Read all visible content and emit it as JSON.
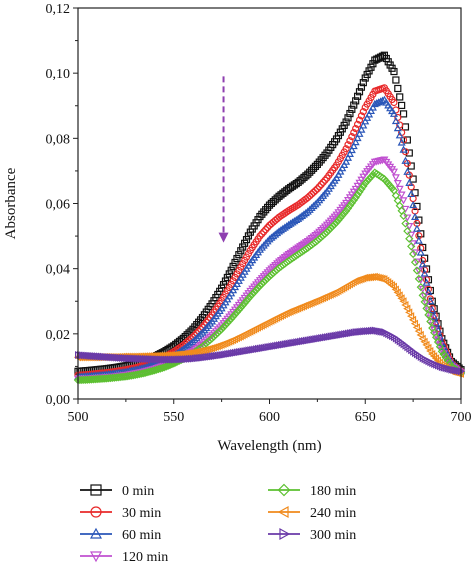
{
  "chart_data": {
    "type": "scatter",
    "title": "",
    "xlabel": "Wavelength (nm)",
    "ylabel": "Absorbance",
    "xlim": [
      500,
      700
    ],
    "ylim": [
      0.0,
      0.12
    ],
    "x_ticks": [
      "500",
      "550",
      "600",
      "650",
      "700"
    ],
    "y_ticks": [
      "0,00",
      "0,02",
      "0,04",
      "0,06",
      "0,08",
      "0,10",
      "0,12"
    ],
    "grid": false,
    "legend_position": "bottom",
    "annotation": "dashed arrow pointing down from ~0.099 to ~0.048 at 576 nm",
    "arrow": {
      "x": 576,
      "y_start": 0.099,
      "y_end": 0.048,
      "color": "#8e3fb0"
    },
    "x": [
      500,
      505,
      510,
      515,
      520,
      525,
      530,
      535,
      540,
      545,
      550,
      555,
      560,
      565,
      570,
      575,
      580,
      585,
      590,
      595,
      600,
      605,
      610,
      615,
      620,
      625,
      630,
      635,
      640,
      645,
      650,
      655,
      660,
      665,
      670,
      675,
      680,
      685,
      690,
      695,
      700
    ],
    "series": [
      {
        "name": "0 min",
        "color": "#111111",
        "marker": "square",
        "values": [
          0.0085,
          0.0087,
          0.009,
          0.0093,
          0.0097,
          0.0102,
          0.0109,
          0.0118,
          0.013,
          0.0145,
          0.0163,
          0.0186,
          0.0214,
          0.025,
          0.0292,
          0.034,
          0.0395,
          0.0455,
          0.0512,
          0.056,
          0.0595,
          0.0622,
          0.0645,
          0.0665,
          0.069,
          0.072,
          0.0755,
          0.0798,
          0.085,
          0.0915,
          0.0985,
          0.104,
          0.1055,
          0.1005,
          0.0875,
          0.0675,
          0.0465,
          0.03,
          0.0185,
          0.0115,
          0.009
        ]
      },
      {
        "name": "30 min",
        "color": "#e8292a",
        "marker": "circle",
        "values": [
          0.0073,
          0.0075,
          0.0078,
          0.0081,
          0.0085,
          0.009,
          0.0096,
          0.0104,
          0.0115,
          0.0128,
          0.0145,
          0.0165,
          0.019,
          0.022,
          0.0258,
          0.0302,
          0.0352,
          0.0405,
          0.0456,
          0.05,
          0.0533,
          0.0558,
          0.0578,
          0.0596,
          0.0618,
          0.0645,
          0.0678,
          0.0718,
          0.0768,
          0.083,
          0.0895,
          0.0945,
          0.0955,
          0.091,
          0.0795,
          0.0615,
          0.0425,
          0.0278,
          0.0175,
          0.011,
          0.0085
        ]
      },
      {
        "name": "60 min",
        "color": "#2a56b8",
        "marker": "triangle-up",
        "values": [
          0.0068,
          0.007,
          0.0072,
          0.0075,
          0.0079,
          0.0083,
          0.0089,
          0.0096,
          0.0106,
          0.0118,
          0.0133,
          0.0152,
          0.0175,
          0.0204,
          0.0238,
          0.0278,
          0.0324,
          0.0372,
          0.0418,
          0.0458,
          0.049,
          0.0514,
          0.0534,
          0.0553,
          0.0575,
          0.0603,
          0.0637,
          0.0678,
          0.0728,
          0.0788,
          0.0852,
          0.0905,
          0.0918,
          0.0875,
          0.0765,
          0.0595,
          0.0413,
          0.0272,
          0.0172,
          0.011,
          0.0085
        ]
      },
      {
        "name": "120 min",
        "color": "#c050d0",
        "marker": "triangle-down",
        "values": [
          0.0062,
          0.0063,
          0.0065,
          0.0067,
          0.007,
          0.0074,
          0.0079,
          0.0085,
          0.0093,
          0.0103,
          0.0115,
          0.013,
          0.0148,
          0.017,
          0.0196,
          0.0226,
          0.026,
          0.0296,
          0.0332,
          0.0365,
          0.0395,
          0.0422,
          0.0445,
          0.0465,
          0.0485,
          0.0508,
          0.0535,
          0.0566,
          0.0602,
          0.0645,
          0.0692,
          0.0728,
          0.0735,
          0.0698,
          0.061,
          0.0478,
          0.0338,
          0.0228,
          0.015,
          0.0102,
          0.0082
        ]
      },
      {
        "name": "180 min",
        "color": "#5cc030",
        "marker": "diamond",
        "values": [
          0.0058,
          0.0059,
          0.0061,
          0.0063,
          0.0066,
          0.0069,
          0.0074,
          0.008,
          0.0088,
          0.0097,
          0.0109,
          0.0123,
          0.014,
          0.0161,
          0.0186,
          0.0214,
          0.0246,
          0.028,
          0.0315,
          0.0347,
          0.0376,
          0.0402,
          0.0424,
          0.0444,
          0.0464,
          0.0486,
          0.0512,
          0.0542,
          0.0577,
          0.0618,
          0.0662,
          0.0695,
          0.0675,
          0.064,
          0.0562,
          0.0445,
          0.0318,
          0.0218,
          0.0146,
          0.01,
          0.008
        ]
      },
      {
        "name": "240 min",
        "color": "#f08a1c",
        "marker": "triangle-left",
        "values": [
          0.0128,
          0.0128,
          0.0128,
          0.0129,
          0.0129,
          0.013,
          0.013,
          0.0131,
          0.0132,
          0.0133,
          0.0135,
          0.0138,
          0.0142,
          0.0148,
          0.0156,
          0.0166,
          0.0178,
          0.0192,
          0.0207,
          0.0222,
          0.0237,
          0.0252,
          0.0266,
          0.0278,
          0.029,
          0.0302,
          0.0315,
          0.0328,
          0.0345,
          0.0362,
          0.0372,
          0.0375,
          0.0368,
          0.0345,
          0.03,
          0.0243,
          0.0185,
          0.0138,
          0.0105,
          0.0085,
          0.0077
        ]
      },
      {
        "name": "300 min",
        "color": "#6a3aa8",
        "marker": "triangle-right",
        "values": [
          0.0135,
          0.0133,
          0.0131,
          0.0129,
          0.0127,
          0.0125,
          0.0124,
          0.0123,
          0.0122,
          0.0121,
          0.0121,
          0.0122,
          0.0124,
          0.0127,
          0.0131,
          0.0135,
          0.014,
          0.0145,
          0.015,
          0.0155,
          0.016,
          0.0165,
          0.017,
          0.0175,
          0.018,
          0.0185,
          0.019,
          0.0195,
          0.02,
          0.0205,
          0.0208,
          0.021,
          0.0205,
          0.019,
          0.0168,
          0.0145,
          0.0125,
          0.011,
          0.0098,
          0.009,
          0.0085
        ]
      }
    ]
  }
}
